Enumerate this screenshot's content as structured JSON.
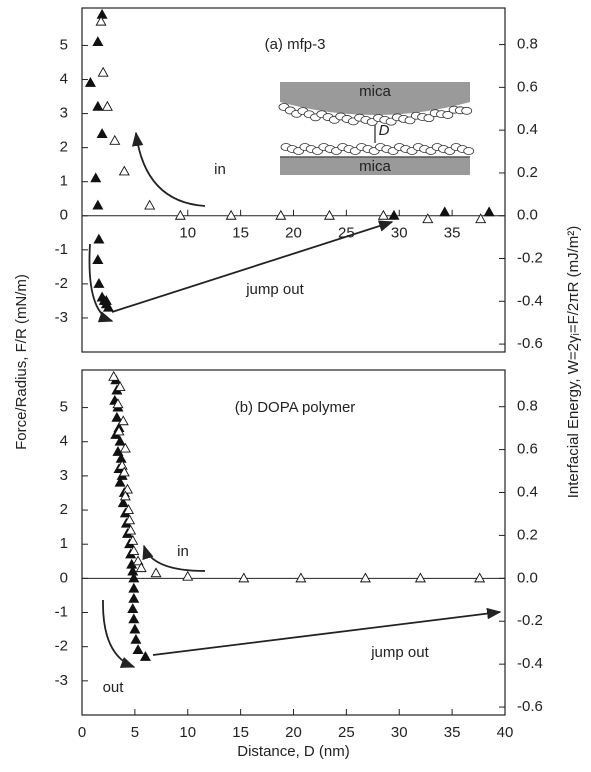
{
  "chart_data": [
    {
      "type": "scatter",
      "title": "(a) mfp-3",
      "ylabel": "Force/Radius, F/R (mN/m)",
      "y2label": "Interfacial Energy, W=2γᵢ=F/2πR (mJ/m²)",
      "xlim": [
        0,
        40
      ],
      "xticks": [
        10,
        15,
        20,
        25,
        30,
        35
      ],
      "xtick_labels_at": "zero",
      "ylim": [
        -4,
        6.1
      ],
      "yticks": [
        -3,
        -2,
        -1,
        0,
        1,
        2,
        3,
        4,
        5
      ],
      "y2lim": [
        -0.637,
        0.971
      ],
      "y2ticks": [
        -0.6,
        -0.4,
        -0.2,
        {
          "value": 0,
          "label": "0.0"
        },
        0.2,
        0.4,
        0.6,
        0.8
      ],
      "series": [
        {
          "color": "#111111",
          "filled": true,
          "x": [
            1.9,
            1.5,
            0.8,
            1.5,
            1.9,
            1.3,
            1.5,
            1.6,
            1.5,
            1.6,
            1.9,
            2.1,
            2.3,
            2.5,
            2.3,
            29.5,
            34.3,
            38.5
          ],
          "values": [
            5.9,
            5.1,
            3.9,
            3.2,
            2.4,
            1.1,
            0.3,
            -0.7,
            -1.3,
            -2.0,
            -2.4,
            -2.5,
            -2.6,
            -2.7,
            -2.5,
            0.0,
            0.1,
            0.1
          ]
        },
        {
          "color": "#111111",
          "filled": false,
          "x": [
            1.8,
            2.0,
            2.4,
            3.1,
            4.0,
            6.4,
            9.3,
            14.1,
            18.8,
            23.4,
            28.5,
            32.7,
            37.7
          ],
          "values": [
            5.7,
            4.2,
            3.2,
            2.2,
            1.3,
            0.3,
            0.0,
            0.0,
            0.0,
            0.0,
            0.0,
            -0.1,
            -0.1
          ]
        }
      ],
      "annotations": [
        "in",
        "jump out",
        "mica",
        "mica",
        "D"
      ]
    },
    {
      "type": "scatter",
      "title": "(b) DOPA polymer",
      "xlabel": "Distance, D (nm)",
      "xlim": [
        0,
        40
      ],
      "xticks": [
        0,
        5,
        10,
        15,
        20,
        25,
        30,
        35,
        40
      ],
      "xtick_labels_at": "bottom",
      "ylim": [
        -4,
        6.1
      ],
      "yticks": [
        -3,
        -2,
        -1,
        0,
        1,
        2,
        3,
        4,
        5
      ],
      "y2lim": [
        -0.637,
        0.971
      ],
      "y2ticks": [
        -0.6,
        -0.4,
        -0.2,
        {
          "value": 0,
          "label": "0.0"
        },
        0.2,
        0.4,
        0.6,
        0.8
      ],
      "series": [
        {
          "color": "#111111",
          "filled": true,
          "x": [
            3.2,
            3.3,
            3.1,
            3.4,
            3.3,
            3.5,
            3.2,
            3.6,
            3.4,
            3.7,
            3.5,
            3.8,
            3.6,
            4.0,
            3.9,
            4.1,
            4.2,
            4.3,
            4.5,
            4.6,
            4.7,
            4.8,
            4.9,
            4.9,
            4.9,
            4.8,
            4.9,
            5.0,
            5.1,
            5.3,
            6.0
          ],
          "values": [
            5.8,
            5.5,
            5.2,
            5.0,
            4.7,
            4.4,
            4.2,
            4.0,
            3.7,
            3.5,
            3.2,
            3.0,
            2.8,
            2.5,
            2.2,
            1.9,
            1.6,
            1.3,
            1.0,
            0.7,
            0.4,
            0.2,
            0.0,
            -0.3,
            -0.6,
            -0.9,
            -1.2,
            -1.5,
            -1.8,
            -2.1,
            -2.3
          ]
        },
        {
          "color": "#111111",
          "filled": false,
          "x": [
            3.0,
            3.6,
            3.4,
            3.9,
            3.5,
            4.1,
            3.8,
            4.0,
            4.3,
            4.1,
            4.4,
            4.5,
            4.6,
            4.8,
            4.9,
            5.3,
            5.6,
            7.0,
            10.0,
            15.3,
            20.7,
            26.8,
            32.0,
            37.6
          ],
          "values": [
            5.9,
            5.6,
            5.1,
            4.6,
            4.3,
            3.8,
            3.3,
            3.1,
            2.6,
            2.4,
            2.0,
            1.7,
            1.4,
            1.1,
            0.8,
            0.5,
            0.3,
            0.15,
            0.05,
            0.0,
            0.0,
            0.0,
            0.0,
            0.0
          ]
        }
      ],
      "annotations": [
        "in",
        "jump out",
        "out"
      ]
    }
  ]
}
